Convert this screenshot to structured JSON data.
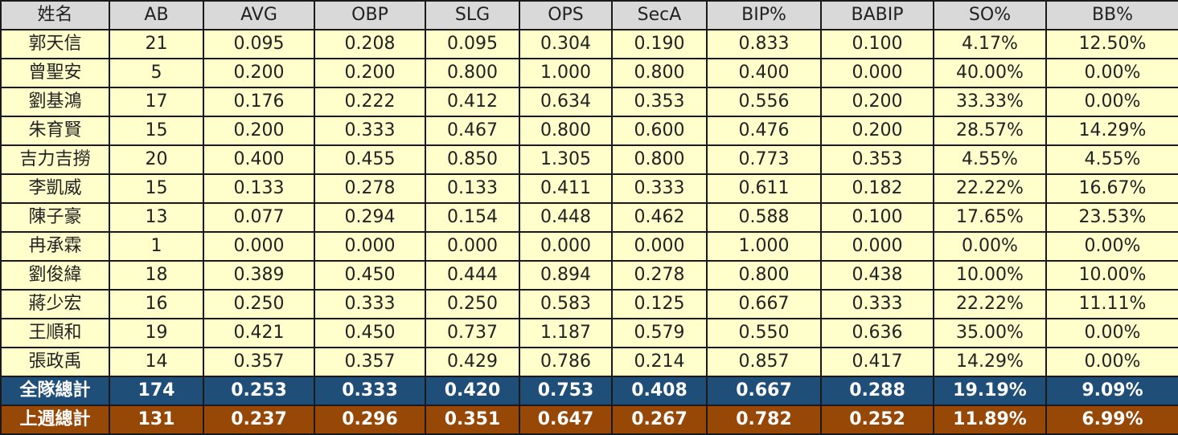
{
  "table": {
    "header": [
      "姓名",
      "AB",
      "AVG",
      "OBP",
      "SLG",
      "OPS",
      "SecA",
      "BIP%",
      "BABIP",
      "SO%",
      "BB%"
    ],
    "rows": [
      [
        "郭天信",
        "21",
        "0.095",
        "0.208",
        "0.095",
        "0.304",
        "0.190",
        "0.833",
        "0.100",
        "4.17%",
        "12.50%"
      ],
      [
        "曾聖安",
        "5",
        "0.200",
        "0.200",
        "0.800",
        "1.000",
        "0.800",
        "0.400",
        "0.000",
        "40.00%",
        "0.00%"
      ],
      [
        "劉基鴻",
        "17",
        "0.176",
        "0.222",
        "0.412",
        "0.634",
        "0.353",
        "0.556",
        "0.200",
        "33.33%",
        "0.00%"
      ],
      [
        "朱育賢",
        "15",
        "0.200",
        "0.333",
        "0.467",
        "0.800",
        "0.600",
        "0.476",
        "0.200",
        "28.57%",
        "14.29%"
      ],
      [
        "吉力吉撈",
        "20",
        "0.400",
        "0.455",
        "0.850",
        "1.305",
        "0.800",
        "0.773",
        "0.353",
        "4.55%",
        "4.55%"
      ],
      [
        "李凱威",
        "15",
        "0.133",
        "0.278",
        "0.133",
        "0.411",
        "0.333",
        "0.611",
        "0.182",
        "22.22%",
        "16.67%"
      ],
      [
        "陳子豪",
        "13",
        "0.077",
        "0.294",
        "0.154",
        "0.448",
        "0.462",
        "0.588",
        "0.100",
        "17.65%",
        "23.53%"
      ],
      [
        "冉承霖",
        "1",
        "0.000",
        "0.000",
        "0.000",
        "0.000",
        "0.000",
        "1.000",
        "0.000",
        "0.00%",
        "0.00%"
      ],
      [
        "劉俊緯",
        "18",
        "0.389",
        "0.450",
        "0.444",
        "0.894",
        "0.278",
        "0.800",
        "0.438",
        "10.00%",
        "10.00%"
      ],
      [
        "蔣少宏",
        "16",
        "0.250",
        "0.333",
        "0.250",
        "0.583",
        "0.125",
        "0.667",
        "0.333",
        "22.22%",
        "11.11%"
      ],
      [
        "王順和",
        "19",
        "0.421",
        "0.450",
        "0.737",
        "1.187",
        "0.579",
        "0.550",
        "0.636",
        "35.00%",
        "0.00%"
      ],
      [
        "張政禹",
        "14",
        "0.357",
        "0.357",
        "0.429",
        "0.786",
        "0.214",
        "0.857",
        "0.417",
        "14.29%",
        "0.00%"
      ]
    ],
    "totals": [
      [
        "全隊總計",
        "174",
        "0.253",
        "0.333",
        "0.420",
        "0.753",
        "0.408",
        "0.667",
        "0.288",
        "19.19%",
        "9.09%"
      ],
      [
        "上週總計",
        "131",
        "0.237",
        "0.296",
        "0.351",
        "0.647",
        "0.267",
        "0.782",
        "0.252",
        "11.89%",
        "6.99%"
      ]
    ]
  }
}
